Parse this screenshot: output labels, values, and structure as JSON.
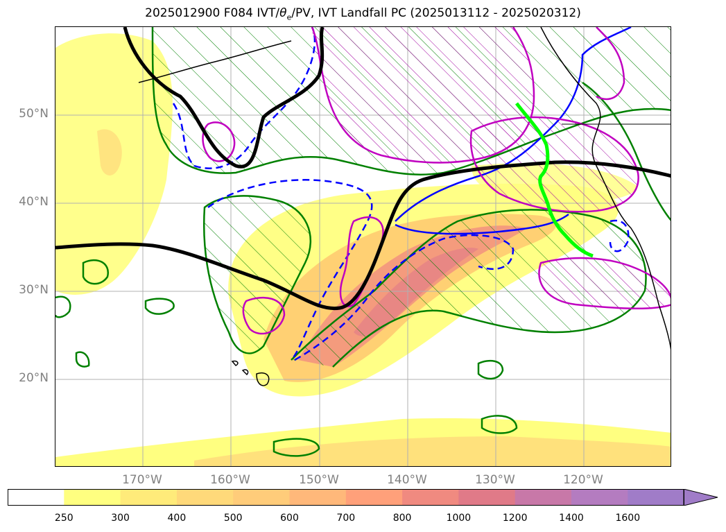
{
  "title": {
    "prefix": "2025012900 F084 IVT/",
    "theta": "θ",
    "theta_sub": "e",
    "suffix": "/PV, IVT Landfall PC (2025013112 - 2025020312)"
  },
  "map": {
    "lat_labels": [
      "50°N",
      "40°N",
      "30°N",
      "20°N"
    ],
    "lon_labels": [
      "170°W",
      "160°W",
      "150°W",
      "140°W",
      "130°W",
      "120°W"
    ],
    "colors": {
      "ivt_low": "#ffff80",
      "ivt_mid": "#ffc870",
      "ivt_high": "#f08080",
      "theta_contour": "#000000",
      "pv_positive": "#008000",
      "pv_negative": "#0000ff",
      "pc_contour": "#c000c0",
      "landfall_line": "#00ff00",
      "coastline": "#000000",
      "grid": "#b0b0b0"
    }
  },
  "colorbar": {
    "levels": [
      "250",
      "300",
      "400",
      "500",
      "600",
      "700",
      "800",
      "1000",
      "1200",
      "1400",
      "1600"
    ],
    "colors": [
      "#ffffff",
      "#ffff80",
      "#ffeb7a",
      "#ffd97a",
      "#ffcc7a",
      "#ffb87a",
      "#ffa07a",
      "#f08a80",
      "#e07a88",
      "#c878a8",
      "#b47cc0",
      "#a07cc8"
    ]
  }
}
